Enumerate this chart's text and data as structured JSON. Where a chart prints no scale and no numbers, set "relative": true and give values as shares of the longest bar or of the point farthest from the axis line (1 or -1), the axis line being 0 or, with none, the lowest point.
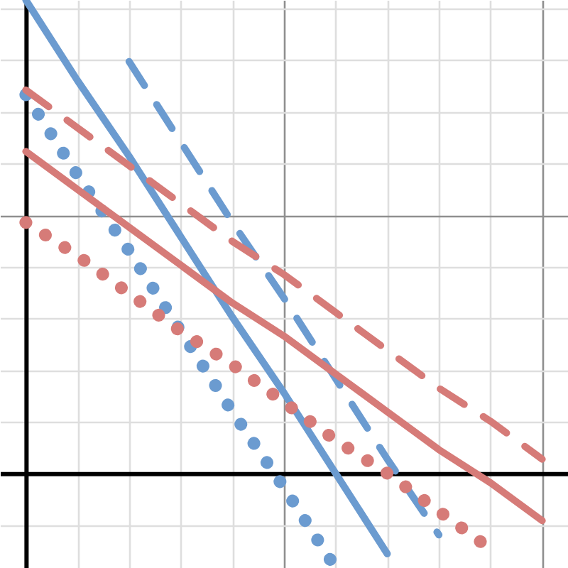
{
  "chart_data": {
    "type": "line",
    "relative": true,
    "grid": true,
    "categories": [
      null,
      null,
      null,
      null,
      null,
      null,
      null,
      null,
      null,
      null,
      null
    ],
    "series": [
      {
        "color": "#6b9bd0",
        "line_style": "solid",
        "values": [
          1,
          0.83,
          0.67,
          0.5,
          0.33,
          0.17,
          0,
          -0.17,
          null,
          null,
          null
        ]
      },
      {
        "color": "#6b9bd0",
        "line_style": "dashed",
        "values": [
          null,
          null,
          0.87,
          0.7,
          0.53,
          0.37,
          0.2,
          0.03,
          -0.13,
          null,
          null
        ]
      },
      {
        "color": "#6b9bd0",
        "line_style": "dotted",
        "values": [
          0.8,
          0.63,
          0.47,
          0.3,
          0.13,
          -0.03,
          -0.2,
          null,
          null,
          null,
          null
        ]
      },
      {
        "color": "#d67b78",
        "line_style": "solid",
        "values": [
          0.68,
          0.6,
          0.52,
          0.44,
          0.36,
          0.29,
          0.21,
          0.13,
          0.05,
          -0.02,
          -0.1
        ]
      },
      {
        "color": "#d67b78",
        "line_style": "dashed",
        "values": [
          0.81,
          0.73,
          0.65,
          0.57,
          0.49,
          0.42,
          0.34,
          0.26,
          0.18,
          0.11,
          0.03
        ]
      },
      {
        "color": "#d67b78",
        "line_style": "dotted",
        "values": [
          0.53,
          0.46,
          0.38,
          0.3,
          0.23,
          0.15,
          0.07,
          0,
          -0.08,
          -0.16,
          null
        ]
      }
    ]
  }
}
